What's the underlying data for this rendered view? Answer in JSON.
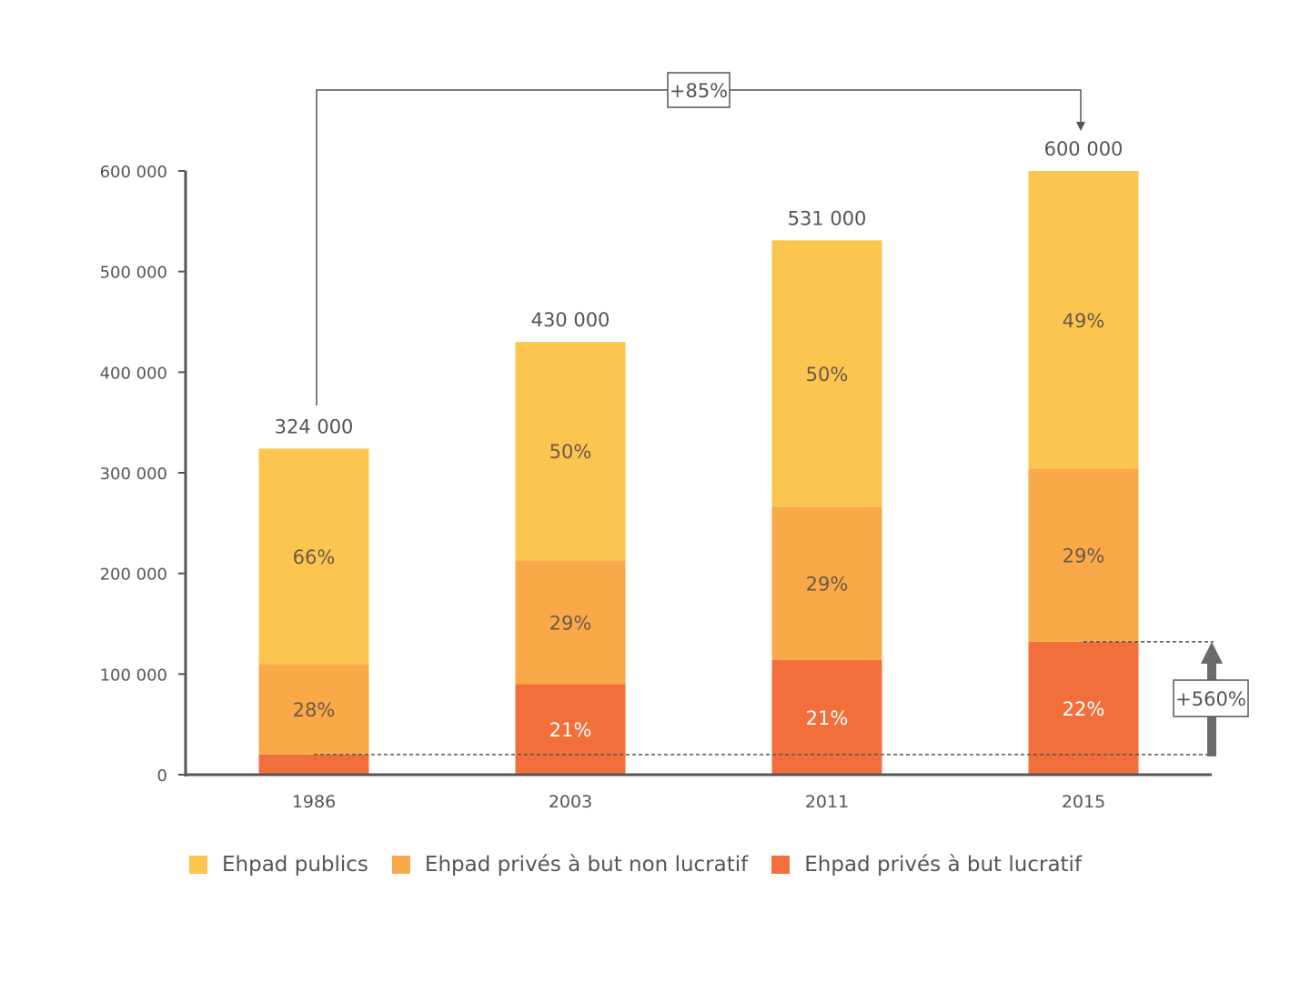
{
  "chart_data": {
    "type": "bar",
    "stacked": true,
    "categories": [
      "1986",
      "2003",
      "2011",
      "2015"
    ],
    "totals": [
      324000,
      430000,
      531000,
      600000
    ],
    "total_labels": [
      "324 000",
      "430 000",
      "531 000",
      "600 000"
    ],
    "series": [
      {
        "name": "Ehpad privés à but lucratif",
        "color": "#f26f3b",
        "values": [
          20000,
          90000,
          114000,
          132000
        ],
        "labels": [
          "",
          "21%",
          "21%",
          "22%"
        ]
      },
      {
        "name": "Ehpad privés à but non lucratif",
        "color": "#f9a947",
        "values": [
          90000,
          123000,
          152000,
          172000
        ],
        "labels": [
          "28%",
          "29%",
          "29%",
          "29%"
        ]
      },
      {
        "name": "Ehpad publics",
        "color": "#fbc54f",
        "values": [
          214000,
          217000,
          265000,
          296000
        ],
        "labels": [
          "66%",
          "50%",
          "50%",
          "49%"
        ]
      }
    ],
    "yticks": [
      0,
      100000,
      200000,
      300000,
      400000,
      500000,
      600000
    ],
    "ytick_labels": [
      "0",
      "100 000",
      "200 000",
      "300 000",
      "400 000",
      "500 000",
      "600 000"
    ],
    "ylim": [
      0,
      600000
    ],
    "annotations": [
      {
        "text": "+85%",
        "from": "1986",
        "to": "2015",
        "kind": "bracket-top"
      },
      {
        "text": "+560%",
        "from_value": 20000,
        "to_value": 132000,
        "kind": "arrow-right"
      }
    ],
    "title": "",
    "xlabel": "",
    "ylabel": ""
  },
  "legend": {
    "items": [
      {
        "label": "Ehpad publics",
        "color": "#fbc54f"
      },
      {
        "label": "Ehpad privés à but non lucratif",
        "color": "#f9a947"
      },
      {
        "label": "Ehpad privés à but lucratif",
        "color": "#f26f3b"
      }
    ]
  }
}
